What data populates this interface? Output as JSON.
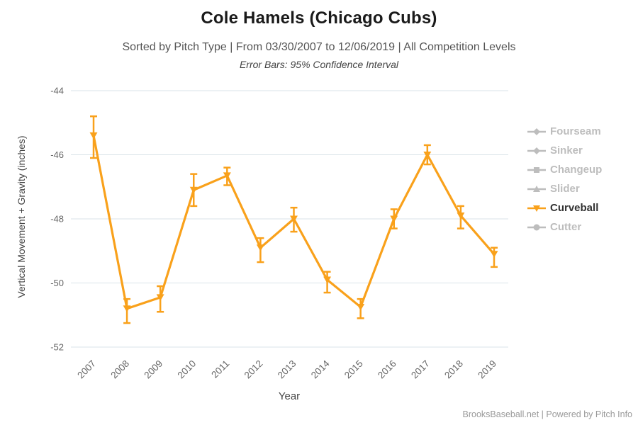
{
  "header": {
    "title": "Cole Hamels (Chicago Cubs)",
    "subtitle": "Sorted by Pitch Type | From 03/30/2007 to 12/06/2019 | All Competition Levels",
    "error_note": "Error Bars: 95% Confidence Interval"
  },
  "chart_data": {
    "type": "line",
    "x": [
      2007,
      2008,
      2009,
      2010,
      2011,
      2012,
      2013,
      2014,
      2015,
      2016,
      2017,
      2018,
      2019
    ],
    "series": [
      {
        "name": "Curveball",
        "color": "#F9A11B",
        "marker": "triangle-down",
        "values": [
          -45.4,
          -50.8,
          -50.45,
          -47.1,
          -46.65,
          -48.9,
          -48.0,
          -49.9,
          -50.75,
          -48.0,
          -46.0,
          -47.9,
          -49.1
        ],
        "error_low": [
          -46.1,
          -51.25,
          -50.9,
          -47.6,
          -46.95,
          -49.35,
          -48.4,
          -50.3,
          -51.1,
          -48.3,
          -46.3,
          -48.3,
          -49.5
        ],
        "error_high": [
          -44.8,
          -50.5,
          -50.1,
          -46.6,
          -46.4,
          -48.6,
          -47.65,
          -49.65,
          -50.5,
          -47.7,
          -45.7,
          -47.6,
          -48.9
        ]
      }
    ],
    "xlabel": "Year",
    "ylabel": "Vertical Movement + Gravity (inches)",
    "ylim": [
      -52,
      -44
    ],
    "yticks": [
      -44,
      -46,
      -48,
      -50,
      -52
    ],
    "grid": true,
    "grid_color": "#D9E3E8",
    "tick_label_color": "#666666",
    "legend_position": "right"
  },
  "legend": {
    "items": [
      {
        "label": "Fourseam",
        "active": false,
        "marker": "diamond"
      },
      {
        "label": "Sinker",
        "active": false,
        "marker": "diamond"
      },
      {
        "label": "Changeup",
        "active": false,
        "marker": "square"
      },
      {
        "label": "Slider",
        "active": false,
        "marker": "triangle"
      },
      {
        "label": "Curveball",
        "active": true,
        "marker": "triangle-down"
      },
      {
        "label": "Cutter",
        "active": false,
        "marker": "circle"
      }
    ],
    "inactive_color": "#BDBDBD",
    "active_label_color": "#333333"
  },
  "footer": {
    "credit": "BrooksBaseball.net | Powered by Pitch Info"
  }
}
